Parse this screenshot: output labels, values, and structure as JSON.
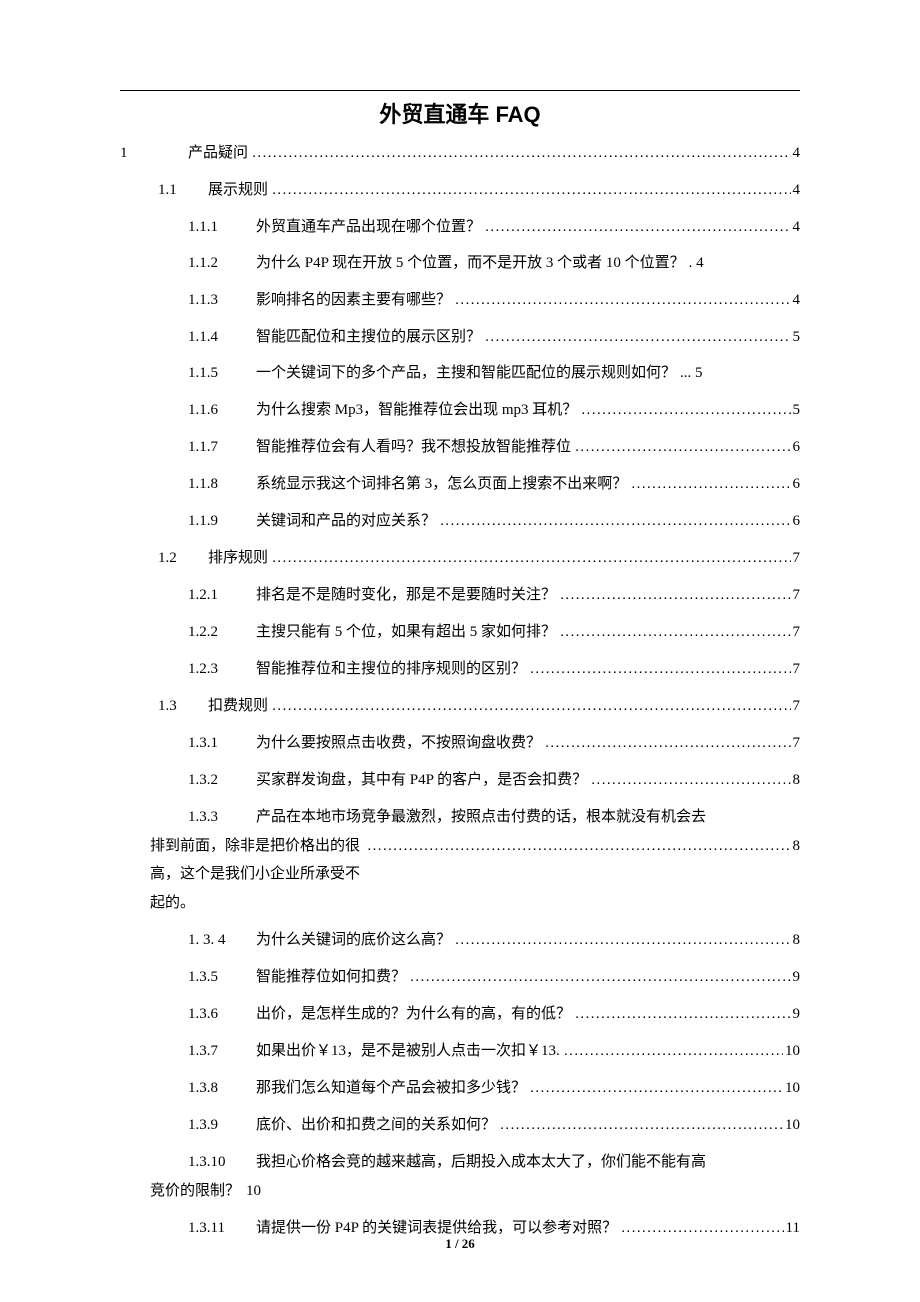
{
  "title": "外贸直通车 FAQ",
  "footer": "1 / 26",
  "toc": [
    {
      "level": 0,
      "num": "1",
      "label": "产品疑问",
      "page": "4"
    },
    {
      "level": 1,
      "num": "1.1",
      "label": "展示规则",
      "page": "4"
    },
    {
      "level": 2,
      "num": "1.1.1",
      "label": "外贸直通车产品出现在哪个位置？",
      "page": "4"
    },
    {
      "level": 2,
      "num": "1.1.2",
      "label": "为什么 P4P 现在开放 5 个位置，而不是开放 3 个或者 10 个位置？",
      "page": ". 4",
      "noleader": true
    },
    {
      "level": 2,
      "num": "1.1.3",
      "label": "影响排名的因素主要有哪些？",
      "page": "4"
    },
    {
      "level": 2,
      "num": "1.1.4",
      "label": "智能匹配位和主搜位的展示区别？",
      "page": "5"
    },
    {
      "level": 2,
      "num": "1.1.5",
      "label": "一个关键词下的多个产品，主搜和智能匹配位的展示规则如何？",
      "page": "... 5",
      "noleader": true
    },
    {
      "level": 2,
      "num": "1.1.6",
      "label": "为什么搜索 Mp3，智能推荐位会出现 mp3 耳机？",
      "page": "5"
    },
    {
      "level": 2,
      "num": "1.1.7",
      "label": "智能推荐位会有人看吗？我不想投放智能推荐位",
      "page": "6"
    },
    {
      "level": 2,
      "num": "1.1.8",
      "label": "系统显示我这个词排名第 3，怎么页面上搜索不出来啊？",
      "page": "6"
    },
    {
      "level": 2,
      "num": "1.1.9",
      "label": "关键词和产品的对应关系？",
      "page": "6"
    },
    {
      "level": 1,
      "num": "1.2",
      "label": "排序规则",
      "page": "7"
    },
    {
      "level": 2,
      "num": "1.2.1",
      "label": "排名是不是随时变化，那是不是要随时关注？",
      "page": "7"
    },
    {
      "level": 2,
      "num": "1.2.2",
      "label": "主搜只能有 5 个位，如果有超出 5 家如何排？",
      "page": "7"
    },
    {
      "level": 2,
      "num": "1.2.3",
      "label": "智能推荐位和主搜位的排序规则的区别？",
      "page": "7"
    },
    {
      "level": 1,
      "num": "1.3",
      "label": "扣费规则",
      "page": "7"
    },
    {
      "level": 2,
      "num": "1.3.1",
      "label": "为什么要按照点击收费，不按照询盘收费？",
      "page": "7"
    },
    {
      "level": 2,
      "num": "1.3.2",
      "label": "买家群发询盘，其中有 P4P 的客户，是否会扣费？",
      "page": "8"
    },
    {
      "level": 2,
      "wrap": true,
      "num": "1.3.3",
      "line1": "产品在本地市场竞争最激烈，按照点击付费的话，根本就没有机会去",
      "cont_prefix": "排到前面，",
      "cont_label": "除非是把价格出的很高，这个是我们小企业所承受不起的。",
      "page": "8"
    },
    {
      "level": 2,
      "num": "1. 3. 4",
      "label": "为什么关键词的底价这么高？",
      "page": "8"
    },
    {
      "level": 2,
      "num": "1.3.5",
      "label": "智能推荐位如何扣费？",
      "page": "9"
    },
    {
      "level": 2,
      "num": "1.3.6",
      "label": "出价，是怎样生成的？为什么有的高，有的低？",
      "page": "9"
    },
    {
      "level": 2,
      "num": "1.3.7",
      "label": "如果出价￥13，是不是被别人点击一次扣￥13.",
      "page": "10"
    },
    {
      "level": 2,
      "num": "1.3.8",
      "label": "那我们怎么知道每个产品会被扣多少钱？",
      "page": "10"
    },
    {
      "level": 2,
      "num": "1.3.9",
      "label": "底价、出价和扣费之间的关系如何？",
      "page": "10"
    },
    {
      "level": 2,
      "wrap": true,
      "num": "1.3.10",
      "line1": "我担心价格会竞的越来越高，后期投入成本太大了，你们能不能有高",
      "cont_prefix": "竞价的限制？",
      "cont_label": "",
      "page": "10",
      "contnoleader": true
    },
    {
      "level": 2,
      "num": "1.3.11",
      "label": "请提供一份 P4P 的关键词表提供给我，可以参考对照？",
      "page": "11"
    }
  ]
}
